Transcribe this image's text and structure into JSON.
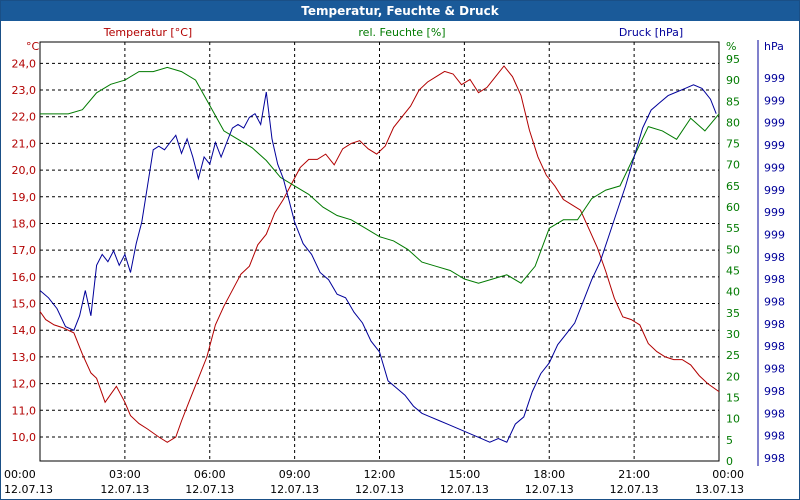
{
  "window": {
    "title": "Temperatur, Feuchte & Druck"
  },
  "chart_data": {
    "type": "line",
    "title": "Temperatur, Feuchte & Druck",
    "colors": {
      "temperature": "#b20000",
      "humidity": "#007a00",
      "pressure": "#00009a",
      "grid": "#000000"
    },
    "x_ticks": [
      {
        "time": "00:00",
        "date": "12.07.13"
      },
      {
        "time": "03:00",
        "date": "12.07.13"
      },
      {
        "time": "06:00",
        "date": "12.07.13"
      },
      {
        "time": "09:00",
        "date": "12.07.13"
      },
      {
        "time": "12:00",
        "date": "12.07.13"
      },
      {
        "time": "15:00",
        "date": "12.07.13"
      },
      {
        "time": "18:00",
        "date": "12.07.13"
      },
      {
        "time": "21:00",
        "date": "12.07.13"
      },
      {
        "time": "00:00",
        "date": "13.07.13"
      }
    ],
    "xlim": [
      0,
      24
    ],
    "axes": {
      "temperature": {
        "unit": "°C",
        "label": "Temperatur [°C]",
        "ticks": [
          "24,0",
          "23,0",
          "22,0",
          "21,0",
          "20,0",
          "19,0",
          "18,0",
          "17,0",
          "16,0",
          "15,0",
          "14,0",
          "13,0",
          "12,0",
          "11,0",
          "10,0"
        ]
      },
      "humidity": {
        "unit": "%",
        "label": "rel. Feuchte [%]",
        "ticks": [
          "95",
          "90",
          "85",
          "80",
          "75",
          "70",
          "65",
          "60",
          "55",
          "50",
          "45",
          "40",
          "35",
          "30",
          "25",
          "20",
          "15",
          "10",
          "5",
          "0"
        ]
      },
      "pressure": {
        "unit": "hPa",
        "label": "Druck [hPa]",
        "ticks": [
          "999",
          "999",
          "999",
          "999",
          "999",
          "999",
          "999",
          "999",
          "998",
          "998",
          "998",
          "998",
          "998",
          "998",
          "998",
          "998",
          "998",
          "998"
        ]
      }
    },
    "temp_ylim": [
      9.1,
      24.8
    ],
    "hum_ylim": [
      0,
      99
    ],
    "pressure_note": "pressure tick labels are rounded; series shown on a relative scale 0-100",
    "series": [
      {
        "name": "Temperatur [°C]",
        "axis": "temperature",
        "x": [
          0,
          0.2,
          0.5,
          0.8,
          1.2,
          1.5,
          1.8,
          2.0,
          2.3,
          2.5,
          2.7,
          3.0,
          3.2,
          3.5,
          3.8,
          4.2,
          4.5,
          4.8,
          5.0,
          5.3,
          5.6,
          5.9,
          6.2,
          6.5,
          6.8,
          7.1,
          7.4,
          7.7,
          8.0,
          8.3,
          8.6,
          8.9,
          9.2,
          9.5,
          9.8,
          10.1,
          10.4,
          10.7,
          11.0,
          11.3,
          11.6,
          11.9,
          12.2,
          12.5,
          12.8,
          13.1,
          13.4,
          13.7,
          14.0,
          14.3,
          14.6,
          14.9,
          15.2,
          15.5,
          15.8,
          16.1,
          16.4,
          16.7,
          17.0,
          17.3,
          17.6,
          17.9,
          18.2,
          18.5,
          18.8,
          19.1,
          19.4,
          19.7,
          20.0,
          20.3,
          20.6,
          20.9,
          21.2,
          21.5,
          21.8,
          22.1,
          22.4,
          22.7,
          23.0,
          23.3,
          23.6,
          24.0
        ],
        "values": [
          14.7,
          14.4,
          14.2,
          14.1,
          13.9,
          13.1,
          12.4,
          12.2,
          11.3,
          11.6,
          11.9,
          11.3,
          10.8,
          10.5,
          10.3,
          10.0,
          9.8,
          10.0,
          10.6,
          11.4,
          12.2,
          13.0,
          14.2,
          14.9,
          15.5,
          16.1,
          16.4,
          17.2,
          17.6,
          18.4,
          18.9,
          19.5,
          20.1,
          20.4,
          20.4,
          20.6,
          20.2,
          20.8,
          21.0,
          21.1,
          20.8,
          20.6,
          20.9,
          21.6,
          22.0,
          22.4,
          23.0,
          23.3,
          23.5,
          23.7,
          23.6,
          23.2,
          23.4,
          22.9,
          23.1,
          23.5,
          23.9,
          23.5,
          22.8,
          21.5,
          20.5,
          19.8,
          19.4,
          18.9,
          18.7,
          18.5,
          17.8,
          17.1,
          16.2,
          15.2,
          14.5,
          14.4,
          14.2,
          13.5,
          13.2,
          13.0,
          12.9,
          12.9,
          12.7,
          12.3,
          12.0,
          11.7
        ]
      },
      {
        "name": "rel. Feuchte [%]",
        "axis": "humidity",
        "x": [
          0,
          0.5,
          1.0,
          1.5,
          2.0,
          2.5,
          3.0,
          3.5,
          4.0,
          4.5,
          5.0,
          5.5,
          6.0,
          6.5,
          7.0,
          7.5,
          8.0,
          8.5,
          9.0,
          9.5,
          10.0,
          10.5,
          11.0,
          11.5,
          12.0,
          12.5,
          13.0,
          13.5,
          14.0,
          14.5,
          15.0,
          15.5,
          16.0,
          16.5,
          17.0,
          17.5,
          18.0,
          18.5,
          19.0,
          19.5,
          20.0,
          20.5,
          21.0,
          21.5,
          22.0,
          22.5,
          23.0,
          23.5,
          24.0
        ],
        "values": [
          82,
          82,
          82,
          83,
          87,
          89,
          90,
          92,
          92,
          93,
          92,
          90,
          84,
          78,
          76,
          74,
          71,
          67,
          65,
          63,
          60,
          58,
          57,
          55,
          53,
          52,
          50,
          47,
          46,
          45,
          43,
          42,
          43,
          44,
          42,
          46,
          55,
          57,
          57,
          62,
          64,
          65,
          72,
          79,
          78,
          76,
          81,
          78,
          82
        ]
      },
      {
        "name": "Druck [hPa]",
        "axis": "pressure",
        "x": [
          0,
          0.3,
          0.6,
          0.9,
          1.2,
          1.4,
          1.6,
          1.8,
          2.0,
          2.2,
          2.4,
          2.6,
          2.8,
          3.0,
          3.2,
          3.4,
          3.6,
          3.8,
          4.0,
          4.2,
          4.4,
          4.6,
          4.8,
          5.0,
          5.2,
          5.4,
          5.6,
          5.8,
          6.0,
          6.2,
          6.4,
          6.6,
          6.8,
          7.0,
          7.2,
          7.4,
          7.6,
          7.8,
          8.0,
          8.2,
          8.4,
          8.6,
          8.8,
          9.0,
          9.3,
          9.6,
          9.9,
          10.2,
          10.5,
          10.8,
          11.1,
          11.4,
          11.7,
          12.0,
          12.3,
          12.6,
          12.9,
          13.2,
          13.5,
          13.8,
          14.1,
          14.4,
          14.7,
          15.0,
          15.3,
          15.6,
          15.9,
          16.2,
          16.5,
          16.8,
          17.1,
          17.4,
          17.7,
          18.0,
          18.3,
          18.6,
          18.9,
          19.2,
          19.5,
          19.8,
          20.1,
          20.4,
          20.7,
          21.0,
          21.3,
          21.6,
          21.9,
          22.2,
          22.5,
          22.8,
          23.1,
          23.4,
          23.7,
          23.9
        ],
        "values": [
          45,
          43,
          40,
          35,
          34,
          38,
          45,
          38,
          52,
          55,
          53,
          56,
          52,
          55,
          50,
          58,
          64,
          74,
          84,
          85,
          84,
          86,
          88,
          83,
          87,
          82,
          76,
          82,
          80,
          86,
          82,
          86,
          90,
          91,
          90,
          93,
          94,
          91,
          100,
          87,
          80,
          76,
          70,
          64,
          58,
          55,
          50,
          48,
          44,
          43,
          39,
          36,
          31,
          28,
          20,
          18,
          16,
          13,
          11,
          10,
          9,
          8,
          7,
          6,
          5,
          4,
          3,
          4,
          3,
          8,
          10,
          17,
          22,
          25,
          30,
          33,
          36,
          42,
          48,
          53,
          60,
          67,
          74,
          82,
          90,
          95,
          97,
          99,
          100,
          101,
          102,
          101,
          98,
          94
        ]
      }
    ]
  }
}
